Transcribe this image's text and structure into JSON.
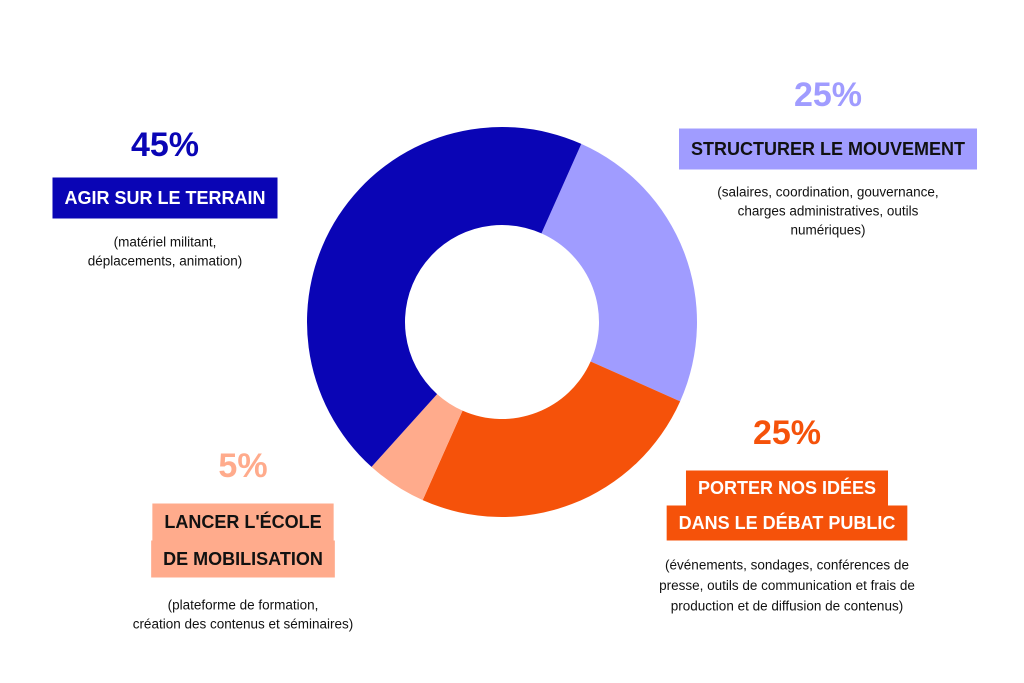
{
  "chart_data": {
    "type": "donut",
    "categories": [
      [
        "STRUCTURER LE MOUVEMENT"
      ],
      [
        "PORTER NOS IDÉES",
        "DANS LE DÉBAT PUBLIC"
      ],
      [
        "LANCER L'ÉCOLE",
        "DE MOBILISATION"
      ],
      [
        "AGIR SUR LE TERRAIN"
      ]
    ],
    "values": [
      25,
      25,
      5,
      45
    ],
    "value_labels": [
      "25%",
      "25%",
      "5%",
      "45%"
    ],
    "colors": [
      "#a09cff",
      "#f5520a",
      "#ffab8c",
      "#0a05b5"
    ],
    "label_text_colors": [
      "#111111",
      "#ffffff",
      "#111111",
      "#ffffff"
    ],
    "descriptions": [
      [
        "(salaires, coordination, gouvernance,",
        "charges administratives, outils",
        "numériques)"
      ],
      [
        "(événements, sondages, conférences de",
        "presse, outils de communication et frais de",
        "production et de diffusion de contenus)"
      ],
      [
        "(plateforme de formation,",
        "création des contenus et séminaires)"
      ],
      [
        "(matériel militant,",
        "déplacements, animation)"
      ]
    ]
  }
}
